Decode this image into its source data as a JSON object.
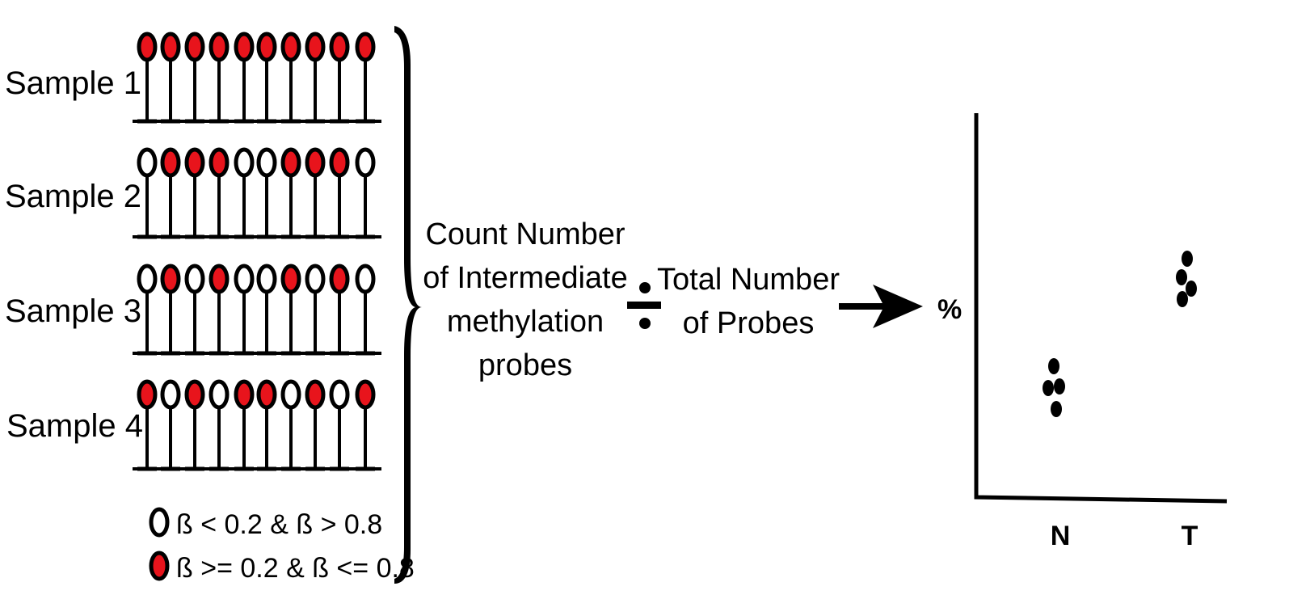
{
  "samples": [
    {
      "label": "Sample 1",
      "probes": [
        1,
        1,
        1,
        1,
        1,
        1,
        1,
        1,
        1,
        1
      ]
    },
    {
      "label": "Sample 2",
      "probes": [
        0,
        1,
        1,
        1,
        0,
        0,
        1,
        1,
        1,
        0
      ]
    },
    {
      "label": "Sample 3",
      "probes": [
        0,
        1,
        0,
        1,
        0,
        0,
        1,
        0,
        1,
        0
      ]
    },
    {
      "label": "Sample 4",
      "probes": [
        1,
        0,
        1,
        0,
        1,
        1,
        0,
        1,
        0,
        1
      ]
    }
  ],
  "legend": {
    "unfilled_label": "ß < 0.2 & ß > 0.8",
    "filled_label": "ß >= 0.2 & ß <= 0.8"
  },
  "colors": {
    "filled_probe": "#e8141c",
    "unfilled_probe": "#ffffff",
    "ink": "#000000"
  },
  "numerator": {
    "line1": "Count Number",
    "line2": "of Intermediate",
    "line3": "methylation",
    "line4": "probes"
  },
  "operator": "÷",
  "denominator": {
    "line1": "Total Number",
    "line2": "of Probes"
  },
  "plot": {
    "y_label": "%",
    "categories": [
      "N",
      "T"
    ],
    "icons": {
      "arrow": "right-arrow-icon",
      "brace": "right-curly-brace",
      "divide": "divide-icon"
    }
  }
}
